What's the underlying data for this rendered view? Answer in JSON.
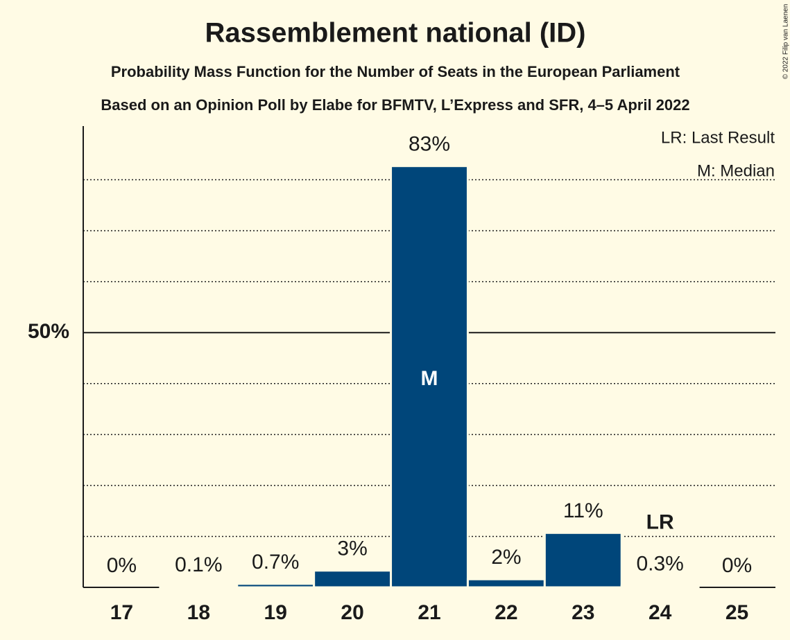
{
  "chart_data": {
    "type": "bar",
    "title": "Rassemblement national (ID)",
    "subtitle": "Probability Mass Function for the Number of Seats in the European Parliament",
    "subtitle2": "Based on an Opinion Poll by Elabe for BFMTV, L’Express and SFR, 4–5 April 2022",
    "categories": [
      "17",
      "18",
      "19",
      "20",
      "21",
      "22",
      "23",
      "24",
      "25"
    ],
    "values": [
      0,
      0.1,
      0.7,
      3.3,
      82.7,
      1.6,
      10.7,
      0.3,
      0
    ],
    "value_labels": [
      "0%",
      "0.1%",
      "0.7%",
      "3%",
      "83%",
      "2%",
      "11%",
      "0.3%",
      "0%"
    ],
    "color": "#00467a",
    "ylim": [
      0,
      90
    ],
    "yticks": [
      {
        "value": 50,
        "label": "50%"
      }
    ],
    "grid_lines": [
      10,
      20,
      30,
      40,
      60,
      70,
      80
    ],
    "median": {
      "label": "M",
      "category": "21"
    },
    "last_result": {
      "label": "LR",
      "category": "24"
    },
    "legend": [
      "LR: Last Result",
      "M: Median"
    ],
    "copyright": "© 2022 Filip van Laenen"
  }
}
